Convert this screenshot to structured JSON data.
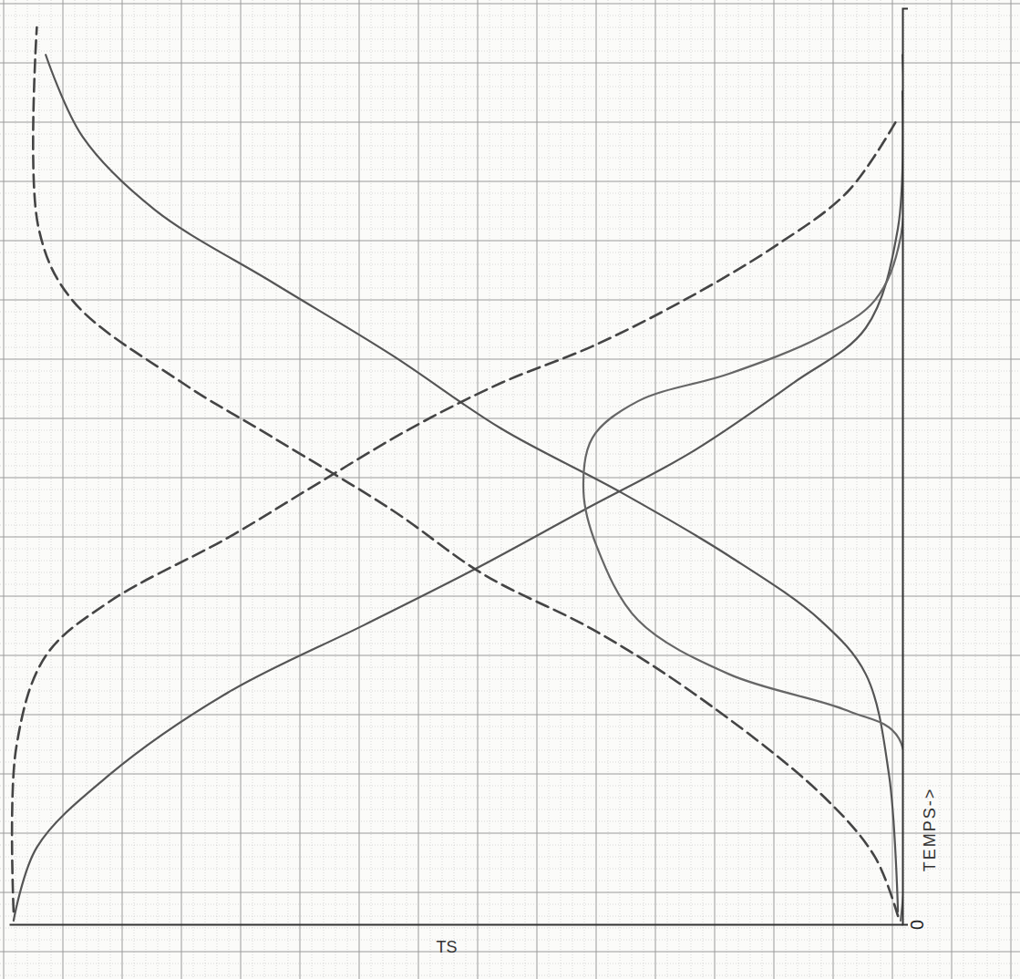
{
  "chart_data": {
    "type": "line",
    "xlabel": "TEMPS->",
    "ylabel": "TS",
    "xlim": [
      0,
      100
    ],
    "ylim": [
      0,
      100
    ],
    "xticks": [
      0
    ],
    "yticks": [],
    "tick_labels": "x",
    "series": [
      {
        "color": "#555555",
        "line_style": "solid",
        "x": [
          0.5,
          8.5,
          16.4,
          25.4,
          32.8,
          38.8,
          45.3,
          51.7,
          59.2,
          65.2,
          76.1,
          91.0
        ],
        "values": [
          99.5,
          96.9,
          88.8,
          75.5,
          60.2,
          48.0,
          35.7,
          23.5,
          12.2,
          4.1,
          0.5,
          0
        ]
      },
      {
        "color": "#555555",
        "line_style": "solid",
        "x": [
          1.5,
          16.4,
          27.4,
          33.3,
          40.3,
          47.3,
          54.2,
          62.2,
          70.1,
          78.1,
          86.1,
          95.0
        ],
        "values": [
          0.5,
          1.5,
          4.1,
          9.2,
          19.4,
          31.6,
          44.9,
          57.1,
          70.4,
          83.7,
          91.8,
          95.9
        ]
      },
      {
        "color": "#666666",
        "line_style": "solid",
        "x": [
          0.5,
          20.4,
          23.4,
          27.4,
          33.3,
          41.3,
          47.3,
          53.2,
          57.2,
          60.2,
          64.2,
          68.2,
          75.1,
          95.0
        ],
        "values": [
          0.2,
          0.4,
          6.1,
          19.4,
          29.6,
          34.2,
          35.7,
          34.7,
          29.6,
          19.4,
          9.2,
          3.1,
          0.2,
          0
        ]
      },
      {
        "color": "#444444",
        "line_style": "dashed",
        "x": [
          1.0,
          7.5,
          14.4,
          25.4,
          32.3,
          38.3,
          45.3,
          53.2,
          59.2,
          68.2,
          76.1,
          98.0
        ],
        "values": [
          0.5,
          3.1,
          9.2,
          23.5,
          34.7,
          46.9,
          57.1,
          70.4,
          80.6,
          92.9,
          96.7,
          96.9
        ]
      },
      {
        "color": "#444444",
        "line_style": "dashed",
        "x": [
          1.5,
          19.4,
          29.4,
          35.3,
          42.3,
          48.3,
          54.2,
          59.2,
          63.2,
          68.2,
          74.1,
          80.1,
          88.1
        ],
        "values": [
          99.5,
          99.2,
          95.9,
          88.8,
          75.5,
          65.3,
          55.1,
          44.9,
          34.7,
          24.5,
          14.3,
          6.1,
          0.5
        ]
      }
    ]
  }
}
